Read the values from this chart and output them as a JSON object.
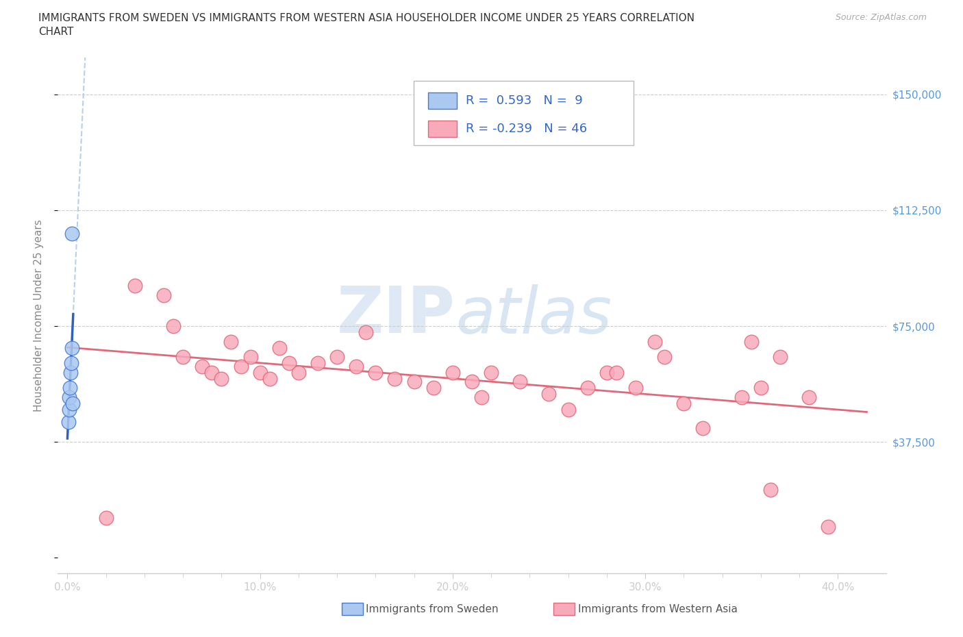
{
  "title_line1": "IMMIGRANTS FROM SWEDEN VS IMMIGRANTS FROM WESTERN ASIA HOUSEHOLDER INCOME UNDER 25 YEARS CORRELATION",
  "title_line2": "CHART",
  "source": "Source: ZipAtlas.com",
  "ylabel": "Householder Income Under 25 years",
  "xtick_labels": [
    "0.0%",
    "10.0%",
    "20.0%",
    "30.0%",
    "40.0%"
  ],
  "xtick_vals": [
    0.0,
    10.0,
    20.0,
    30.0,
    40.0
  ],
  "ytick_vals": [
    0,
    37500,
    75000,
    112500,
    150000
  ],
  "right_ytick_labels": [
    "$37,500",
    "$75,000",
    "$112,500",
    "$150,000"
  ],
  "xlim": [
    -0.5,
    42.5
  ],
  "ylim": [
    -5000,
    162000
  ],
  "sweden_fill": "#aac8f0",
  "sweden_edge": "#4878d0",
  "wa_fill": "#f8aabb",
  "wa_edge": "#e06878",
  "sweden_line_color": "#3060c0",
  "wa_line_color": "#e06878",
  "legend_R_sweden": "R =  0.593   N =  9",
  "legend_R_wa": "R = -0.239   N = 46",
  "legend_text_color": "#3366cc",
  "sweden_x": [
    0.05,
    0.08,
    0.1,
    0.13,
    0.16,
    0.2,
    0.22,
    0.25,
    0.28
  ],
  "sweden_y": [
    44000,
    48000,
    52000,
    55000,
    60000,
    63000,
    68000,
    105000,
    50000
  ],
  "wa_x": [
    2.0,
    3.5,
    5.0,
    5.5,
    6.0,
    7.0,
    7.5,
    8.0,
    8.5,
    9.0,
    9.5,
    10.0,
    10.5,
    11.0,
    11.5,
    12.0,
    13.0,
    14.0,
    15.0,
    15.5,
    16.0,
    17.0,
    18.0,
    19.0,
    20.0,
    21.0,
    21.5,
    22.0,
    23.5,
    25.0,
    26.0,
    27.0,
    28.0,
    28.5,
    29.5,
    30.5,
    31.0,
    32.0,
    33.0,
    35.0,
    36.0,
    36.5,
    37.0,
    38.5,
    35.5,
    39.5
  ],
  "wa_y": [
    13000,
    88000,
    85000,
    75000,
    65000,
    62000,
    60000,
    58000,
    70000,
    62000,
    65000,
    60000,
    58000,
    68000,
    63000,
    60000,
    63000,
    65000,
    62000,
    73000,
    60000,
    58000,
    57000,
    55000,
    60000,
    57000,
    52000,
    60000,
    57000,
    53000,
    48000,
    55000,
    60000,
    60000,
    55000,
    70000,
    65000,
    50000,
    42000,
    52000,
    55000,
    22000,
    65000,
    52000,
    70000,
    10000
  ],
  "grid_color": "#cccccc",
  "spine_color": "#cccccc",
  "tick_label_color": "#888888",
  "axis_label_color": "#888888",
  "right_tick_color": "#5599dd",
  "watermark_color1": "#c5d8ee",
  "watermark_color2": "#99bbdd"
}
